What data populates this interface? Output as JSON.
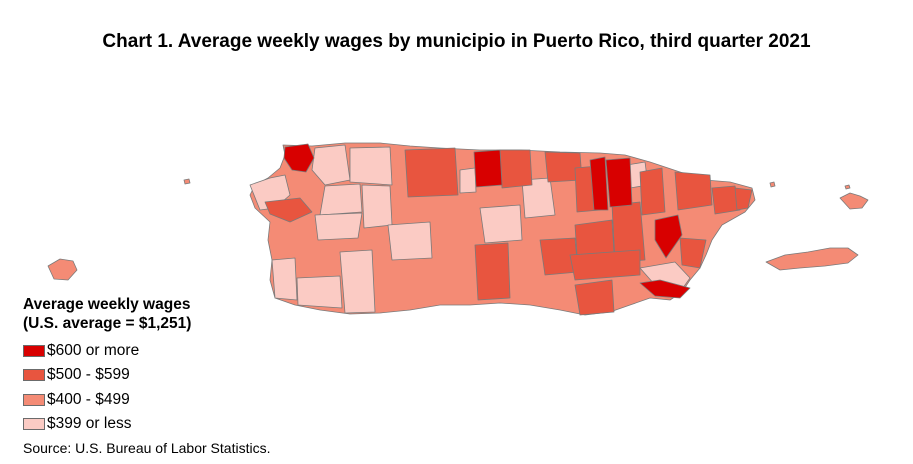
{
  "title": "Chart 1. Average weekly wages by municipio in Puerto Rico, third quarter 2021",
  "legend": {
    "title_line1": "Average weekly wages",
    "title_line2": "(U.S. average = $1,251)",
    "items": [
      {
        "label": "$600 or more",
        "color": "#d80000"
      },
      {
        "label": "$500 - $599",
        "color": "#e8553f"
      },
      {
        "label": "$400 - $499",
        "color": "#f48b75"
      },
      {
        "label": "$399 or less",
        "color": "#fbcbc4"
      }
    ]
  },
  "source": "Source: U.S. Bureau of Labor Statistics."
}
